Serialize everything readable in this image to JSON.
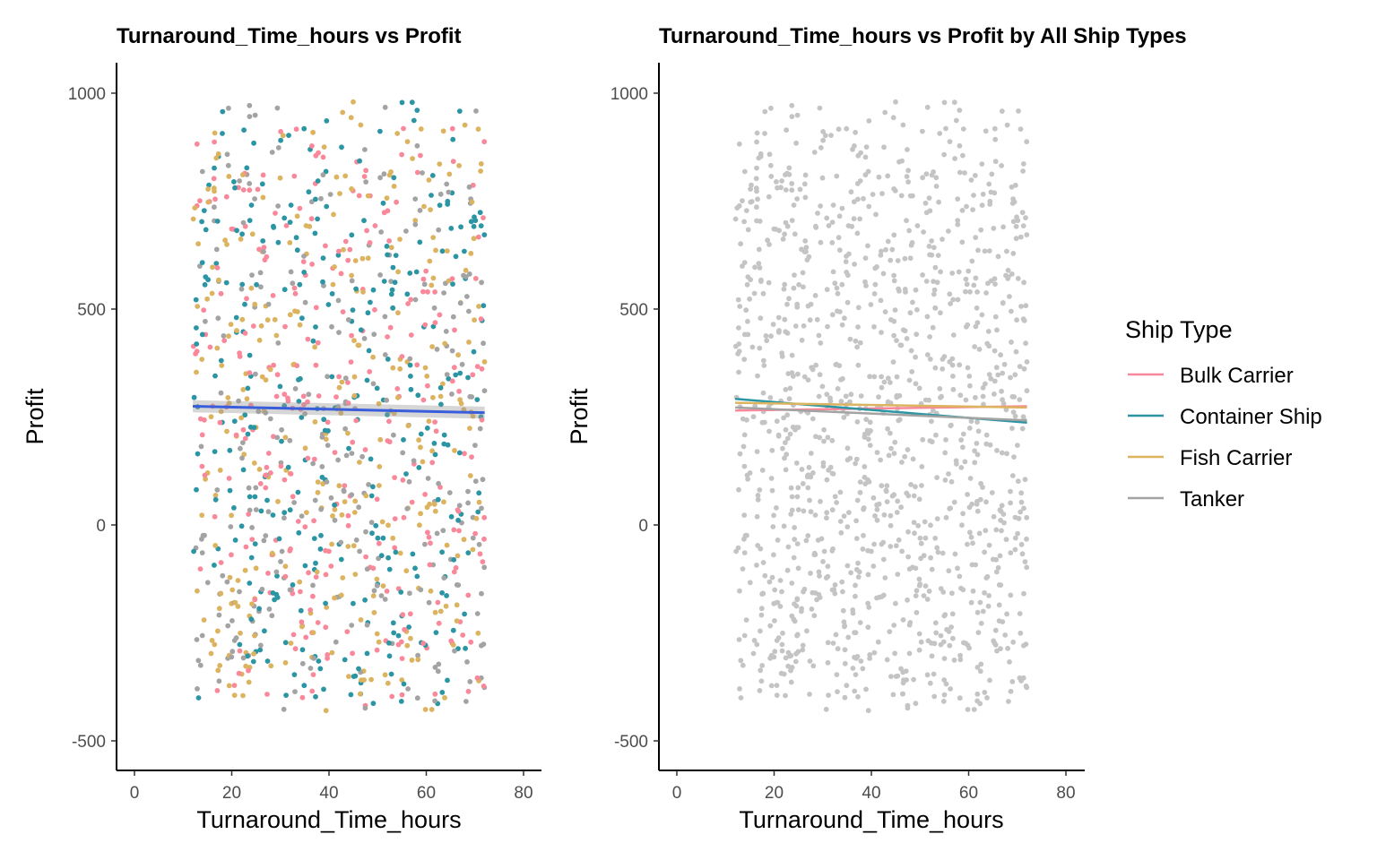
{
  "colors": {
    "Bulk Carrier": "#f8889a",
    "Container Ship": "#2b95a4",
    "Fish Carrier": "#dcb35f",
    "Tanker": "#a3a3a3",
    "gray_points": "#c4c4c4",
    "overall_fit": "#3a5ddc"
  },
  "legend": {
    "title": "Ship Type",
    "items": [
      "Bulk Carrier",
      "Container Ship",
      "Fish Carrier",
      "Tanker"
    ]
  },
  "chart_data": [
    {
      "type": "scatter",
      "title": "Turnaround_Time_hours vs Profit",
      "xlabel": "Turnaround_Time_hours",
      "ylabel": "Profit",
      "xlim": [
        -4,
        84
      ],
      "ylim": [
        -570,
        1070
      ],
      "xticks": [
        0,
        20,
        40,
        60,
        80
      ],
      "yticks": [
        -500,
        0,
        500,
        1000
      ],
      "grid": false,
      "point_coloring": "by ship type",
      "point_x_range": [
        12,
        72
      ],
      "point_y_range": [
        -430,
        980
      ],
      "n_points": 1200,
      "fit_line": {
        "x": [
          12,
          72
        ],
        "y": [
          275,
          260
        ],
        "se_band": 14
      }
    },
    {
      "type": "scatter",
      "title": "Turnaround_Time_hours vs Profit by All Ship Types",
      "xlabel": "Turnaround_Time_hours",
      "ylabel": "Profit",
      "xlim": [
        -4,
        84
      ],
      "ylim": [
        -570,
        1070
      ],
      "xticks": [
        0,
        20,
        40,
        60,
        80
      ],
      "yticks": [
        -500,
        0,
        500,
        1000
      ],
      "grid": false,
      "point_coloring": "single gray",
      "point_x_range": [
        12,
        72
      ],
      "point_y_range": [
        -430,
        980
      ],
      "n_points": 1200,
      "legend_placement": "right",
      "series": [
        {
          "name": "Bulk Carrier",
          "x": [
            12,
            72
          ],
          "y": [
            265,
            275
          ]
        },
        {
          "name": "Container Ship",
          "x": [
            12,
            72
          ],
          "y": [
            292,
            237
          ]
        },
        {
          "name": "Fish Carrier",
          "x": [
            12,
            72
          ],
          "y": [
            283,
            272
          ]
        },
        {
          "name": "Tanker",
          "x": [
            12,
            72
          ],
          "y": [
            272,
            242
          ]
        }
      ]
    }
  ]
}
